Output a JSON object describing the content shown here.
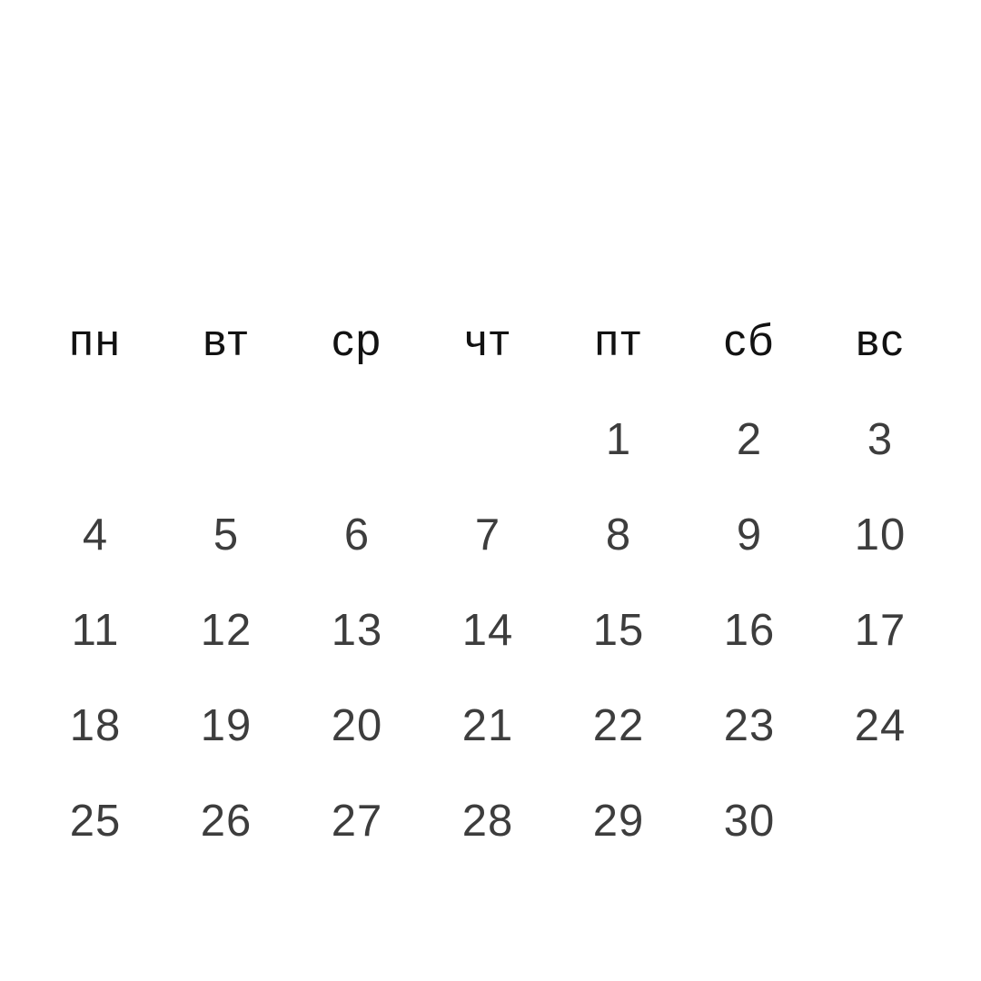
{
  "page": {
    "background_color": "#ffffff"
  },
  "calendar": {
    "weekday_labels": [
      "пн",
      "вт",
      "ср",
      "чт",
      "пт",
      "сб",
      "вс"
    ],
    "weeks": [
      [
        "",
        "",
        "",
        "",
        "1",
        "2",
        "3"
      ],
      [
        "4",
        "5",
        "6",
        "7",
        "8",
        "9",
        "10"
      ],
      [
        "11",
        "12",
        "13",
        "14",
        "15",
        "16",
        "17"
      ],
      [
        "18",
        "19",
        "20",
        "21",
        "22",
        "23",
        "24"
      ],
      [
        "25",
        "26",
        "27",
        "28",
        "29",
        "30",
        ""
      ]
    ],
    "colors": {
      "weekday_text": "#121212",
      "date_text": "#3d3d3d"
    }
  }
}
